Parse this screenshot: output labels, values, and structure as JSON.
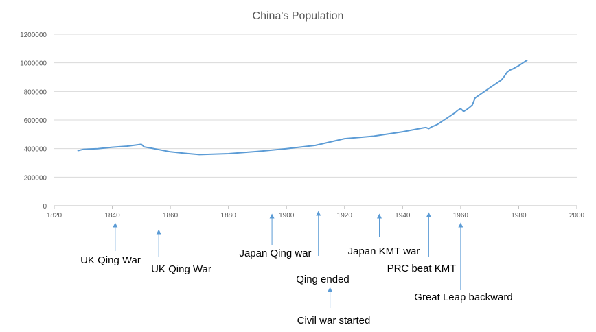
{
  "chart_data": {
    "type": "line",
    "title": "China's Population",
    "xlabel": "",
    "ylabel": "",
    "xlim": [
      1820,
      2000
    ],
    "ylim": [
      0,
      1200000
    ],
    "x_ticks": [
      "1820",
      "1840",
      "1860",
      "1880",
      "1900",
      "1920",
      "1940",
      "1960",
      "1980",
      "2000"
    ],
    "y_ticks": [
      "0",
      "200000",
      "400000",
      "600000",
      "800000",
      "1000000",
      "1200000"
    ],
    "grid": true,
    "legend": "none",
    "series": [
      {
        "color": "#5b9bd5",
        "x": [
          1828,
          1830,
          1835,
          1840,
          1845,
          1848,
          1850,
          1851,
          1853,
          1860,
          1865,
          1870,
          1880,
          1890,
          1900,
          1910,
          1920,
          1930,
          1940,
          1947,
          1948,
          1949,
          1950,
          1952,
          1955,
          1958,
          1959,
          1960,
          1961,
          1962,
          1963,
          1964,
          1965,
          1970,
          1974,
          1975,
          1976,
          1977,
          1978,
          1980,
          1983
        ],
        "values": [
          385000,
          395000,
          400000,
          410000,
          417000,
          425000,
          430000,
          412000,
          405000,
          378000,
          367000,
          358000,
          365000,
          380000,
          400000,
          423000,
          470000,
          487000,
          518000,
          545000,
          548000,
          540000,
          552000,
          570000,
          610000,
          650000,
          668000,
          680000,
          660000,
          672000,
          688000,
          705000,
          755000,
          825000,
          880000,
          905000,
          935000,
          950000,
          958000,
          980000,
          1020000
        ]
      }
    ],
    "annotations": [
      {
        "text": "UK Qing War",
        "x": 1841
      },
      {
        "text": "UK Qing War",
        "x": 1856
      },
      {
        "text": "Japan Qing war",
        "x": 1895
      },
      {
        "text": "Qing ended",
        "x": 1911
      },
      {
        "text": "Civil war started",
        "x": 1915
      },
      {
        "text": "Japan KMT war",
        "x": 1932
      },
      {
        "text": "PRC beat KMT",
        "x": 1949
      },
      {
        "text": "Great Leap backward",
        "x": 1960
      }
    ]
  }
}
